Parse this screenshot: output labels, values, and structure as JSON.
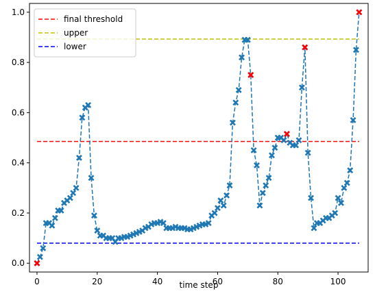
{
  "chart_data": {
    "type": "line",
    "title": "",
    "xlabel": "time step",
    "ylabel": "",
    "xlim": [
      -2.5,
      110
    ],
    "ylim": [
      -0.035,
      1.035
    ],
    "xticks": [
      0,
      20,
      40,
      60,
      80,
      100
    ],
    "yticks": [
      0.0,
      0.2,
      0.4,
      0.6,
      0.8,
      1.0
    ],
    "xtick_labels": [
      "0",
      "20",
      "40",
      "60",
      "80",
      "100"
    ],
    "ytick_labels": [
      "0.0",
      "0.2",
      "0.4",
      "0.6",
      "0.8",
      "1.0"
    ],
    "grid": false,
    "legend_position": "top-left",
    "series": {
      "color": "#1f77b4",
      "marker": "X",
      "x": [
        0,
        1,
        2,
        3,
        4,
        5,
        6,
        7,
        8,
        9,
        10,
        11,
        12,
        13,
        14,
        15,
        16,
        17,
        18,
        19,
        20,
        21,
        22,
        23,
        24,
        25,
        26,
        27,
        28,
        29,
        30,
        31,
        32,
        33,
        34,
        35,
        36,
        37,
        38,
        39,
        40,
        41,
        42,
        43,
        44,
        45,
        46,
        47,
        48,
        49,
        50,
        51,
        52,
        53,
        54,
        55,
        56,
        57,
        58,
        59,
        60,
        61,
        62,
        63,
        64,
        65,
        66,
        67,
        68,
        69,
        70,
        71,
        72,
        73,
        74,
        75,
        76,
        77,
        78,
        79,
        80,
        81,
        82,
        83,
        84,
        85,
        86,
        87,
        88,
        89,
        90,
        91,
        92,
        93,
        94,
        95,
        96,
        97,
        98,
        99,
        100,
        101,
        102,
        103,
        104,
        105,
        106,
        107
      ],
      "y": [
        0.0,
        0.025,
        0.06,
        0.16,
        0.16,
        0.15,
        0.18,
        0.21,
        0.21,
        0.24,
        0.25,
        0.26,
        0.28,
        0.3,
        0.42,
        0.58,
        0.62,
        0.63,
        0.34,
        0.19,
        0.13,
        0.11,
        0.11,
        0.1,
        0.1,
        0.1,
        0.085,
        0.1,
        0.1,
        0.105,
        0.105,
        0.11,
        0.115,
        0.12,
        0.125,
        0.13,
        0.14,
        0.145,
        0.155,
        0.16,
        0.16,
        0.165,
        0.16,
        0.14,
        0.14,
        0.14,
        0.145,
        0.14,
        0.14,
        0.14,
        0.135,
        0.135,
        0.14,
        0.145,
        0.15,
        0.155,
        0.155,
        0.16,
        0.19,
        0.2,
        0.22,
        0.25,
        0.23,
        0.27,
        0.31,
        0.56,
        0.64,
        0.69,
        0.82,
        0.89,
        0.89,
        0.75,
        0.45,
        0.39,
        0.23,
        0.28,
        0.31,
        0.34,
        0.43,
        0.46,
        0.5,
        0.5,
        0.49,
        0.515,
        0.48,
        0.47,
        0.47,
        0.49,
        0.7,
        0.86,
        0.44,
        0.26,
        0.14,
        0.16,
        0.16,
        0.17,
        0.18,
        0.18,
        0.19,
        0.2,
        0.26,
        0.24,
        0.3,
        0.32,
        0.37,
        0.57,
        0.85,
        1.0
      ]
    },
    "highlight_points": {
      "color": "#ff0000",
      "x": [
        0,
        71,
        83,
        89,
        107
      ],
      "y": [
        0.0,
        0.75,
        0.515,
        0.86,
        1.0
      ]
    },
    "lines": [
      {
        "name": "final threshold",
        "y": 0.485,
        "color": "#ff0000",
        "x_range": [
          0,
          107
        ]
      },
      {
        "name": "upper",
        "y": 0.893,
        "color": "#bfbf00",
        "x_range": [
          0,
          107
        ]
      },
      {
        "name": "lower",
        "y": 0.08,
        "color": "#0000ff",
        "x_range": [
          0,
          107
        ]
      }
    ]
  }
}
